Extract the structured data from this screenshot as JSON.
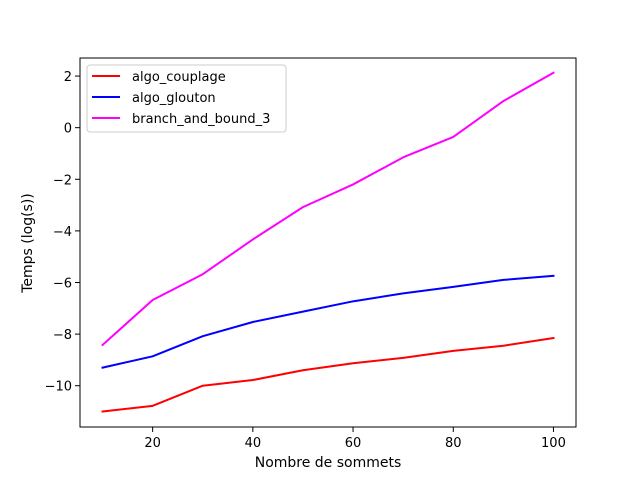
{
  "chart_data": {
    "type": "line",
    "title": "",
    "xlabel": "Nombre de sommets",
    "ylabel": "Temps (log(s))",
    "xlim": [
      5.5,
      104.5
    ],
    "ylim": [
      -11.6,
      2.7
    ],
    "xticks": [
      20,
      40,
      60,
      80,
      100
    ],
    "xtick_labels": [
      "20",
      "40",
      "60",
      "80",
      "100"
    ],
    "yticks": [
      -10,
      -8,
      -6,
      -4,
      -2,
      0,
      2
    ],
    "ytick_labels": [
      "−10",
      "−8",
      "−6",
      "−4",
      "−2",
      "0",
      "2"
    ],
    "grid": false,
    "legend_position": "upper-left",
    "x": [
      10,
      20,
      30,
      40,
      50,
      60,
      70,
      80,
      90,
      100
    ],
    "series": [
      {
        "name": "algo_couplage",
        "color": "#ff0000",
        "values": [
          -11.0,
          -10.78,
          -10.0,
          -9.78,
          -9.4,
          -9.13,
          -8.92,
          -8.65,
          -8.45,
          -8.15
        ]
      },
      {
        "name": "algo_glouton",
        "color": "#0000ff",
        "values": [
          -9.3,
          -8.86,
          -8.08,
          -7.53,
          -7.13,
          -6.73,
          -6.42,
          -6.17,
          -5.9,
          -5.74
        ]
      },
      {
        "name": "branch_and_bound_3",
        "color": "#ff00ff",
        "values": [
          -8.42,
          -6.68,
          -5.68,
          -4.33,
          -3.08,
          -2.2,
          -1.15,
          -0.36,
          1.03,
          2.13
        ]
      }
    ]
  }
}
